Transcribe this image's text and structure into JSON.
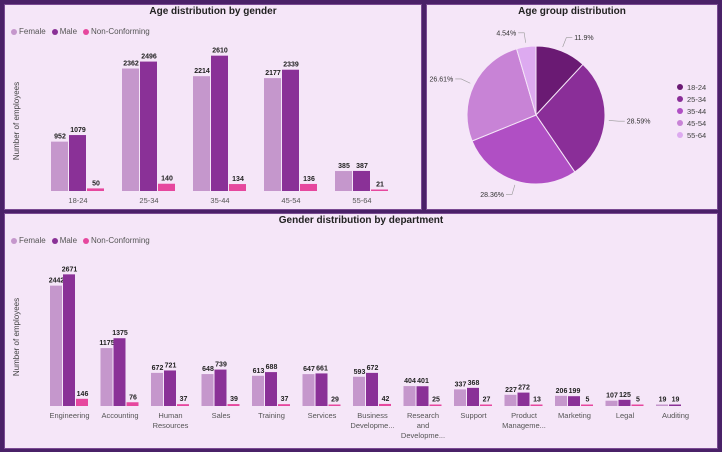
{
  "legend_labels": [
    "Female",
    "Male",
    "Non-Conforming"
  ],
  "colors": {
    "female": "#c597cc",
    "male": "#8a3197",
    "nonconf": "#e6479e"
  },
  "pie_colors": [
    "#6a1a73",
    "#8a2e98",
    "#b04fc4",
    "#c883d6",
    "#ddaaf0"
  ],
  "chart_data": [
    {
      "type": "bar",
      "title": "Age distribution by gender",
      "ylabel": "Number of employees",
      "categories": [
        "18-24",
        "25-34",
        "35-44",
        "45-54",
        "55-64"
      ],
      "series": [
        {
          "name": "Female",
          "values": [
            952,
            2362,
            2214,
            2177,
            385
          ]
        },
        {
          "name": "Male",
          "values": [
            1079,
            2496,
            2610,
            2339,
            387
          ]
        },
        {
          "name": "Non-Conforming",
          "values": [
            50,
            140,
            134,
            136,
            21
          ]
        }
      ],
      "ylim": [
        0,
        2700
      ]
    },
    {
      "type": "pie",
      "title": "Age group distribution",
      "categories": [
        "18-24",
        "25-34",
        "35-44",
        "45-54",
        "55-64"
      ],
      "values": [
        11.9,
        28.59,
        28.36,
        26.61,
        4.54
      ],
      "labels": [
        "11.9%",
        "28.59%",
        "28.36%",
        "26.61%",
        "4.54%"
      ],
      "legend_position": "right"
    },
    {
      "type": "bar",
      "title": "Gender distribution by department",
      "ylabel": "Number of employees",
      "categories": [
        [
          "Engineering"
        ],
        [
          "Accounting"
        ],
        [
          "Human",
          "Resources"
        ],
        [
          "Sales"
        ],
        [
          "Training"
        ],
        [
          "Services"
        ],
        [
          "Business",
          "Developme..."
        ],
        [
          "Research",
          "and",
          "Developme..."
        ],
        [
          "Support"
        ],
        [
          "Product",
          "Manageme..."
        ],
        [
          "Marketing"
        ],
        [
          "Legal"
        ],
        [
          "Auditing"
        ]
      ],
      "series": [
        {
          "name": "Female",
          "values": [
            2442,
            1175,
            672,
            648,
            613,
            647,
            593,
            404,
            337,
            227,
            206,
            107,
            19
          ]
        },
        {
          "name": "Male",
          "values": [
            2671,
            1375,
            721,
            739,
            688,
            661,
            672,
            401,
            368,
            272,
            199,
            125,
            19
          ]
        },
        {
          "name": "Non-Conforming",
          "values": [
            146,
            76,
            37,
            39,
            37,
            29,
            42,
            25,
            27,
            13,
            5,
            5,
            null
          ]
        }
      ],
      "ylim": [
        0,
        2800
      ]
    }
  ]
}
